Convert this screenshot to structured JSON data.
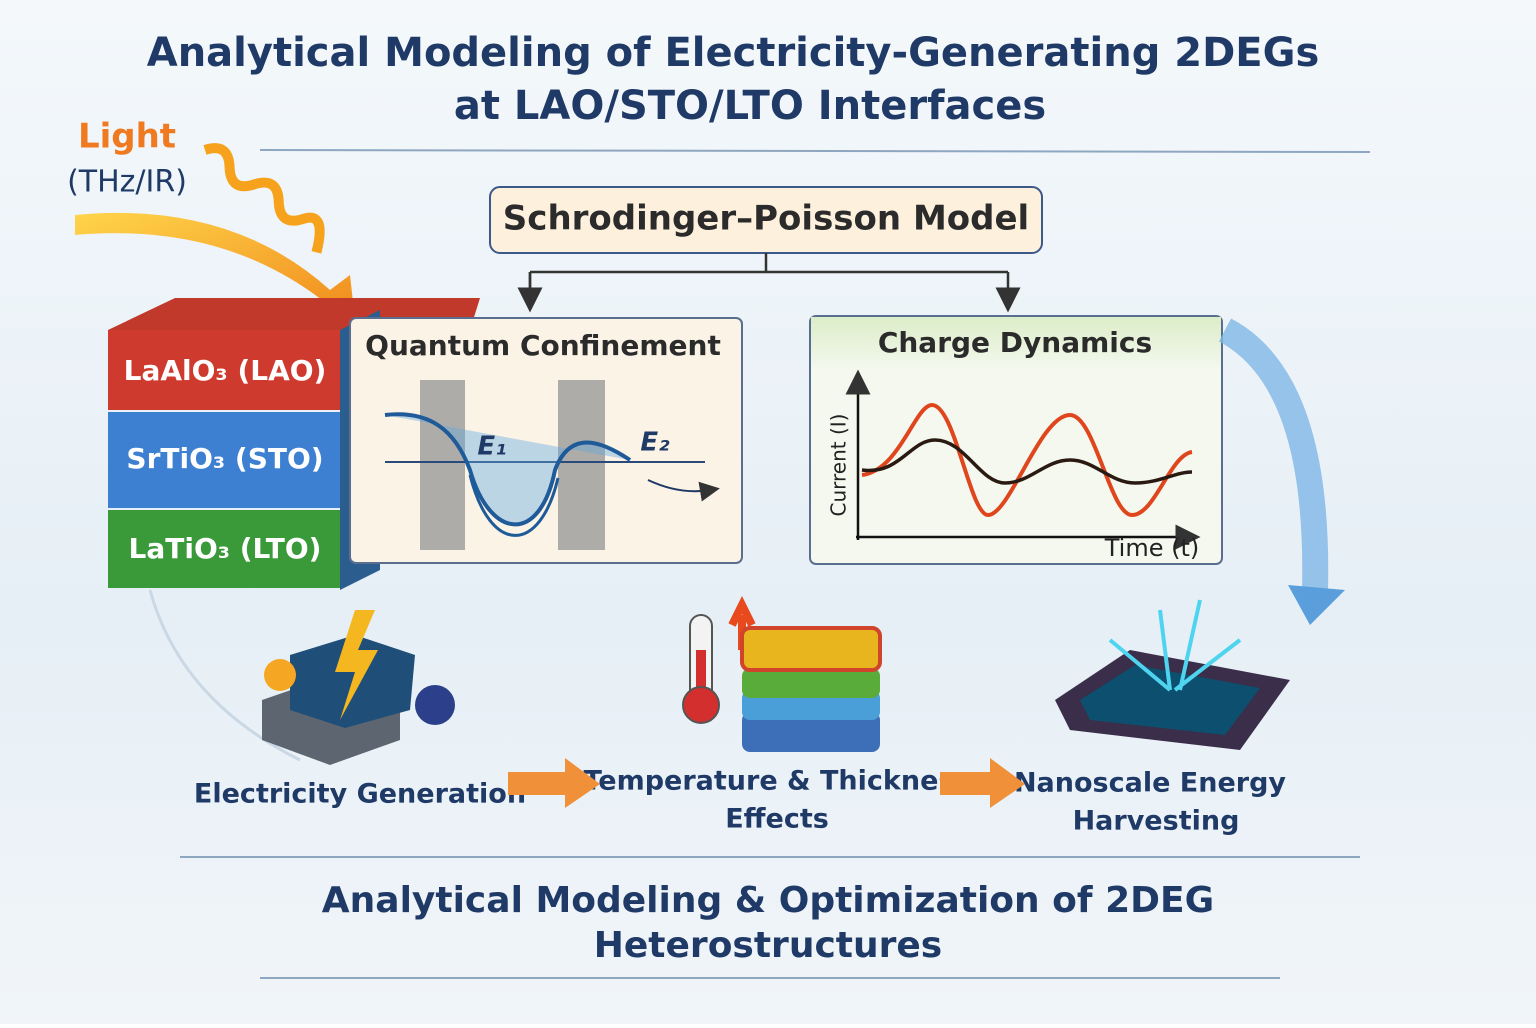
{
  "header": {
    "title_lines": [
      "Analytical Modeling of Electricity-Generating 2DEGs",
      "at LAO/STO/LTO Interfaces"
    ]
  },
  "light": {
    "label": "Light",
    "range": "(THz/IR)"
  },
  "model": {
    "label": "Schrodinger–Poisson Model"
  },
  "layers": [
    "LaAlO₃ (LAO)",
    "SrTiO₃ (STO)",
    "LaTiO₃ (LTO)"
  ],
  "panels": {
    "quantum": {
      "title": "Quantum Confinement",
      "levels": [
        "E₁",
        "E₂"
      ]
    },
    "charge": {
      "title": "Charge Dynamics",
      "y_label": "Current (I)",
      "x_label": "Time (t)"
    }
  },
  "stages": [
    {
      "lines": [
        "Electricity Generation"
      ]
    },
    {
      "lines": [
        "Temperature & Thickness",
        "Effects"
      ]
    },
    {
      "lines": [
        "Nanoscale Energy",
        "Harvesting"
      ]
    }
  ],
  "footer": {
    "lines": [
      "Analytical Modeling & Optimization of 2DEG",
      "Heterostructures"
    ]
  }
}
